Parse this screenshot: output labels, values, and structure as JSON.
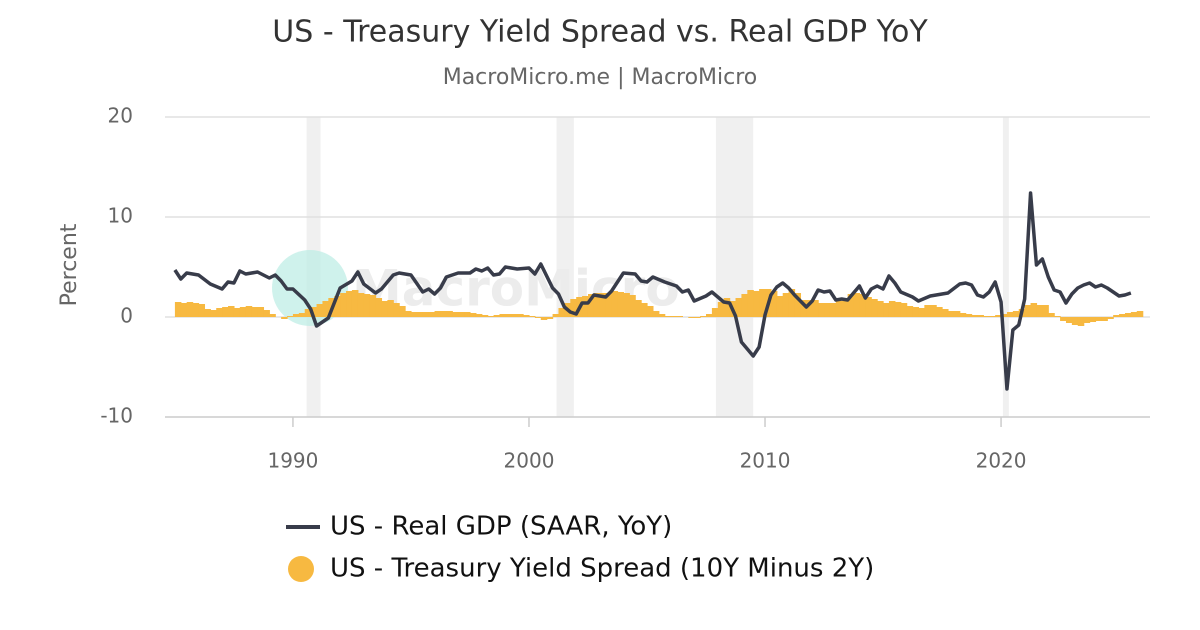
{
  "chart_data": {
    "type": "combo",
    "title": "US - Treasury Yield Spread vs. Real GDP YoY",
    "subtitle": "MacroMicro.me | MacroMicro",
    "watermark": "MacroMicro",
    "y_label": "Percent",
    "xlim": [
      1984.58,
      2026.31
    ],
    "xticks": [
      1990,
      2000,
      2010,
      2020
    ],
    "ylim": [
      -10,
      20
    ],
    "yticks": [
      -10,
      0,
      10,
      20
    ],
    "grid": true,
    "recessions": [
      {
        "start": 1990.58,
        "end": 1991.17
      },
      {
        "start": 2001.17,
        "end": 2001.9
      },
      {
        "start": 2007.92,
        "end": 2009.5
      },
      {
        "start": 2020.08,
        "end": 2020.33
      }
    ],
    "series": [
      {
        "name": "US - Real GDP (SAAR, YoY)",
        "type": "line",
        "color": "#383c4a",
        "x": [
          1985,
          1985.25,
          1985.5,
          1986,
          1986.5,
          1987,
          1987.25,
          1987.5,
          1987.75,
          1988,
          1988.5,
          1989,
          1989.25,
          1989.5,
          1989.75,
          1990,
          1990.5,
          1990.75,
          1991,
          1991.5,
          1992,
          1992.5,
          1992.75,
          1993,
          1993.5,
          1993.75,
          1994.25,
          1994.5,
          1995,
          1995.5,
          1995.75,
          1996,
          1996.25,
          1996.5,
          1997,
          1997.5,
          1997.75,
          1998,
          1998.25,
          1998.5,
          1998.75,
          1999,
          1999.5,
          2000,
          2000.25,
          2000.5,
          2000.75,
          2001,
          2001.25,
          2001.5,
          2001.75,
          2002,
          2002.25,
          2002.5,
          2002.75,
          2003.25,
          2003.5,
          2004,
          2004.5,
          2004.75,
          2005,
          2005.25,
          2005.75,
          2006.25,
          2006.5,
          2006.75,
          2007,
          2007.5,
          2007.75,
          2008,
          2008.25,
          2008.5,
          2008.75,
          2009,
          2009.5,
          2009.75,
          2010,
          2010.25,
          2010.5,
          2010.75,
          2011,
          2011.25,
          2011.5,
          2011.75,
          2012,
          2012.25,
          2012.5,
          2012.75,
          2013,
          2013.25,
          2013.5,
          2014,
          2014.25,
          2014.5,
          2014.75,
          2015,
          2015.25,
          2015.5,
          2015.75,
          2016.25,
          2016.5,
          2017,
          2017.5,
          2017.75,
          2018.25,
          2018.5,
          2018.75,
          2019,
          2019.25,
          2019.5,
          2019.75,
          2020,
          2020.25,
          2020.5,
          2020.75,
          2021,
          2021.25,
          2021.5,
          2021.75,
          2022,
          2022.25,
          2022.5,
          2022.75,
          2023,
          2023.25,
          2023.5,
          2023.75,
          2024,
          2024.25,
          2024.5,
          2024.75,
          2025,
          2025.25,
          2025.5
        ],
        "values": [
          4.7,
          3.8,
          4.4,
          4.2,
          3.3,
          2.8,
          3.5,
          3.4,
          4.6,
          4.3,
          4.5,
          3.9,
          4.2,
          3.6,
          2.8,
          2.8,
          1.7,
          0.8,
          -0.9,
          -0.1,
          2.9,
          3.6,
          4.5,
          3.3,
          2.4,
          2.8,
          4.2,
          4.4,
          4.2,
          2.5,
          2.8,
          2.3,
          2.9,
          4,
          4.4,
          4.4,
          4.8,
          4.6,
          4.9,
          4.2,
          4.3,
          5,
          4.8,
          4.9,
          4.3,
          5.3,
          4.1,
          2.9,
          2.3,
          1,
          0.5,
          0.3,
          1.4,
          1.4,
          2.2,
          2,
          2.6,
          4.4,
          4.3,
          3.6,
          3.5,
          4,
          3.5,
          3.1,
          2.5,
          2.7,
          1.6,
          2.1,
          2.5,
          2,
          1.5,
          1.4,
          0.1,
          -2.5,
          -3.9,
          -3,
          0.2,
          2.2,
          3,
          3.4,
          2.9,
          2.2,
          1.6,
          1,
          1.6,
          2.7,
          2.5,
          2.6,
          1.7,
          1.8,
          1.7,
          3.1,
          1.9,
          2.8,
          3.1,
          2.8,
          4.1,
          3.4,
          2.5,
          2,
          1.6,
          2.1,
          2.3,
          2.4,
          3.3,
          3.4,
          3.2,
          2.2,
          2,
          2.5,
          3.5,
          1.5,
          -7.2,
          -1.3,
          -0.8,
          1.8,
          12.4,
          5.2,
          5.8,
          4,
          2.7,
          2.5,
          1.4,
          2.3,
          2.9,
          3.2,
          3.4,
          3,
          3.2,
          2.9,
          2.5,
          2.1,
          2.2,
          2.4
        ]
      },
      {
        "name": "US - Treasury Yield Spread (10Y Minus 2Y)",
        "type": "column",
        "color": "#f7b941",
        "x": [
          1985,
          1985.25,
          1985.5,
          1985.75,
          1986,
          1986.25,
          1986.5,
          1986.75,
          1987,
          1987.25,
          1987.5,
          1987.75,
          1988,
          1988.25,
          1988.5,
          1988.75,
          1989,
          1989.25,
          1989.5,
          1989.75,
          1990,
          1990.25,
          1990.5,
          1990.75,
          1991,
          1991.25,
          1991.5,
          1991.75,
          1992,
          1992.25,
          1992.5,
          1992.75,
          1993,
          1993.25,
          1993.5,
          1993.75,
          1994,
          1994.25,
          1994.5,
          1994.75,
          1995,
          1995.25,
          1995.5,
          1995.75,
          1996,
          1996.25,
          1996.5,
          1996.75,
          1997,
          1997.25,
          1997.5,
          1997.75,
          1998,
          1998.25,
          1998.5,
          1998.75,
          1999,
          1999.25,
          1999.5,
          1999.75,
          2000,
          2000.25,
          2000.5,
          2000.75,
          2001,
          2001.25,
          2001.5,
          2001.75,
          2002,
          2002.25,
          2002.5,
          2002.75,
          2003,
          2003.25,
          2003.5,
          2003.75,
          2004,
          2004.25,
          2004.5,
          2004.75,
          2005,
          2005.25,
          2005.5,
          2005.75,
          2006,
          2006.25,
          2006.5,
          2006.75,
          2007,
          2007.25,
          2007.5,
          2007.75,
          2008,
          2008.25,
          2008.5,
          2008.75,
          2009,
          2009.25,
          2009.5,
          2009.75,
          2010,
          2010.25,
          2010.5,
          2010.75,
          2011,
          2011.25,
          2011.5,
          2011.75,
          2012,
          2012.25,
          2012.5,
          2012.75,
          2013,
          2013.25,
          2013.5,
          2013.75,
          2014,
          2014.25,
          2014.5,
          2014.75,
          2015,
          2015.25,
          2015.5,
          2015.75,
          2016,
          2016.25,
          2016.5,
          2016.75,
          2017,
          2017.25,
          2017.5,
          2017.75,
          2018,
          2018.25,
          2018.5,
          2018.75,
          2019,
          2019.25,
          2019.5,
          2019.75,
          2020,
          2020.25,
          2020.5,
          2020.75,
          2021,
          2021.25,
          2021.5,
          2021.75,
          2022,
          2022.25,
          2022.5,
          2022.75,
          2023,
          2023.25,
          2023.5,
          2023.75,
          2024,
          2024.25,
          2024.5,
          2024.75,
          2025,
          2025.25,
          2025.5,
          2025.75
        ],
        "values": [
          1.5,
          1.4,
          1.5,
          1.4,
          1.3,
          0.8,
          0.7,
          0.9,
          1,
          1.1,
          0.9,
          1,
          1.1,
          1,
          1,
          0.7,
          0.3,
          0,
          -0.2,
          0.1,
          0.3,
          0.4,
          0.8,
          1,
          1.3,
          1.6,
          1.9,
          2.1,
          2.4,
          2.6,
          2.7,
          2.4,
          2.3,
          2.2,
          1.9,
          1.6,
          1.7,
          1.4,
          1.1,
          0.6,
          0.5,
          0.5,
          0.5,
          0.5,
          0.6,
          0.6,
          0.6,
          0.5,
          0.5,
          0.5,
          0.4,
          0.3,
          0.2,
          0.1,
          0.2,
          0.3,
          0.3,
          0.3,
          0.3,
          0.2,
          0.1,
          -0.1,
          -0.3,
          -0.2,
          0.3,
          0.9,
          1.4,
          1.8,
          2,
          2.1,
          2.3,
          2.4,
          2.4,
          2.4,
          2.6,
          2.5,
          2.4,
          2.2,
          1.7,
          1.4,
          1.1,
          0.6,
          0.3,
          0.1,
          0.1,
          0.1,
          0,
          -0.1,
          -0.1,
          0.1,
          0.3,
          0.9,
          1.5,
          1.9,
          1.6,
          1.9,
          2.3,
          2.7,
          2.6,
          2.8,
          2.8,
          2.6,
          2.1,
          2.4,
          2.8,
          2.4,
          1.7,
          1.7,
          1.7,
          1.4,
          1.4,
          1.4,
          1.6,
          1.6,
          2.3,
          2.4,
          2.3,
          2,
          1.8,
          1.6,
          1.4,
          1.6,
          1.5,
          1.4,
          1.1,
          1,
          0.9,
          1.2,
          1.2,
          1,
          0.8,
          0.6,
          0.6,
          0.4,
          0.3,
          0.2,
          0.2,
          0.1,
          0.1,
          0.2,
          0.3,
          0.5,
          0.6,
          0.8,
          1.2,
          1.4,
          1.2,
          1.2,
          0.4,
          0.1,
          -0.4,
          -0.6,
          -0.8,
          -0.9,
          -0.6,
          -0.5,
          -0.4,
          -0.4,
          -0.2,
          0.2,
          0.3,
          0.4,
          0.5,
          0.6
        ]
      }
    ]
  }
}
